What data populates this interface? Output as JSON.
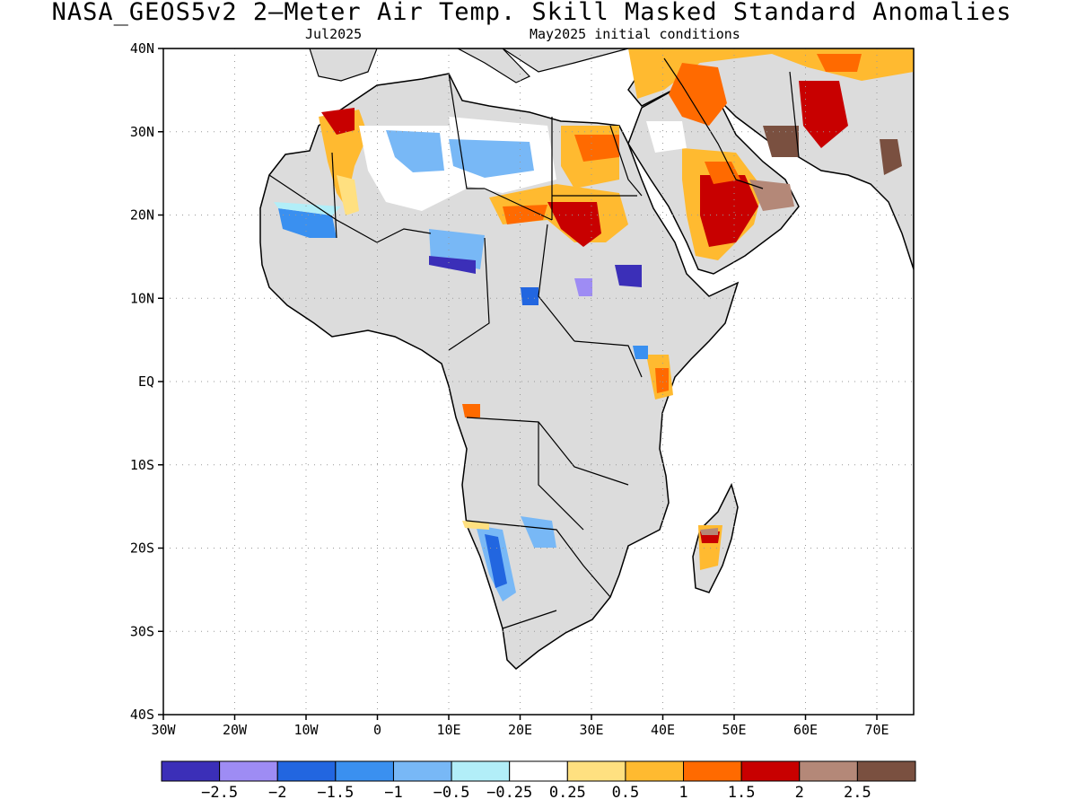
{
  "title": "NASA_GEOS5v2 2–Meter Air Temp. Skill Masked Standard Anomalies",
  "subtitle_left": "Jul2025",
  "subtitle_right": "May2025 initial conditions",
  "lat_ticks": [
    "40N",
    "30N",
    "20N",
    "10N",
    "EQ",
    "10S",
    "20S",
    "30S",
    "40S"
  ],
  "lon_ticks": [
    "30W",
    "20W",
    "10W",
    "0",
    "10E",
    "20E",
    "30E",
    "40E",
    "50E",
    "60E",
    "70E"
  ],
  "colorbar": {
    "colors": [
      "#3b2fb8",
      "#9e8cf4",
      "#2266e0",
      "#3a90f0",
      "#78b8f6",
      "#b2eef8",
      "#ffffff",
      "#ffe080",
      "#ffba30",
      "#ff6a00",
      "#c80000",
      "#b48878",
      "#7a5040"
    ],
    "labels": [
      "−2.5",
      "−2",
      "−1.5",
      "−1",
      "−0.5",
      "−0.25",
      "0.25",
      "0.5",
      "1",
      "1.5",
      "2",
      "2.5"
    ]
  },
  "colors": {
    "land_masked": "#dcdcdc",
    "ocean": "#ffffff",
    "coastline": "#000000"
  }
}
